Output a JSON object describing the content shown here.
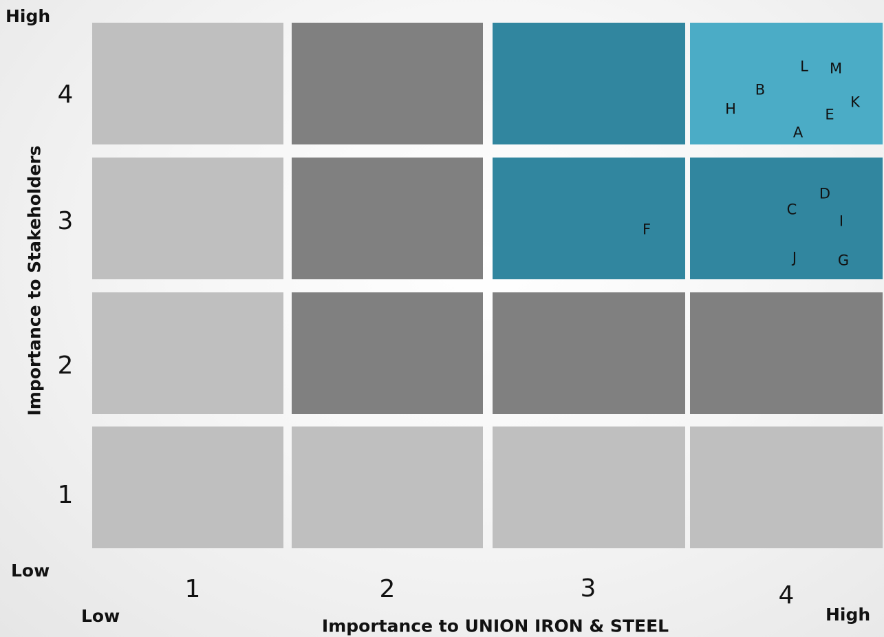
{
  "axes": {
    "x_title": "Importance to UNION IRON & STEEL",
    "y_title": "Importance to Stakeholders",
    "y_high": "High",
    "y_low": "Low",
    "x_low": "Low",
    "x_high": "High"
  },
  "x_ticks": [
    "1",
    "2",
    "3",
    "4"
  ],
  "y_ticks": [
    "4",
    "3",
    "2",
    "1"
  ],
  "colors": {
    "light_grey": "#bfbfbf",
    "dark_grey": "#808080",
    "teal": "#31869f",
    "light_teal": "#4bacc6"
  },
  "grid_rows": [
    {
      "y": 4,
      "fills": [
        "light_grey",
        "dark_grey",
        "teal",
        "light_teal"
      ]
    },
    {
      "y": 3,
      "fills": [
        "light_grey",
        "dark_grey",
        "teal",
        "teal"
      ]
    },
    {
      "y": 2,
      "fills": [
        "light_grey",
        "dark_grey",
        "dark_grey",
        "dark_grey"
      ]
    },
    {
      "y": 1,
      "fills": [
        "light_grey",
        "light_grey",
        "light_grey",
        "light_grey"
      ]
    }
  ],
  "chart_data": {
    "type": "scatter",
    "xlabel": "Importance to UNION IRON & STEEL",
    "ylabel": "Importance to Stakeholders",
    "xlim": [
      1,
      4
    ],
    "ylim": [
      1,
      4
    ],
    "points": [
      {
        "label": "L",
        "x": 4,
        "y": 4
      },
      {
        "label": "M",
        "x": 4,
        "y": 4
      },
      {
        "label": "B",
        "x": 4,
        "y": 4
      },
      {
        "label": "K",
        "x": 4,
        "y": 4
      },
      {
        "label": "H",
        "x": 4,
        "y": 4
      },
      {
        "label": "E",
        "x": 4,
        "y": 4
      },
      {
        "label": "A",
        "x": 4,
        "y": 4
      },
      {
        "label": "D",
        "x": 4,
        "y": 3
      },
      {
        "label": "C",
        "x": 4,
        "y": 3
      },
      {
        "label": "I",
        "x": 4,
        "y": 3
      },
      {
        "label": "F",
        "x": 3,
        "y": 3
      },
      {
        "label": "J",
        "x": 4,
        "y": 3
      },
      {
        "label": "G",
        "x": 4,
        "y": 3
      }
    ]
  }
}
